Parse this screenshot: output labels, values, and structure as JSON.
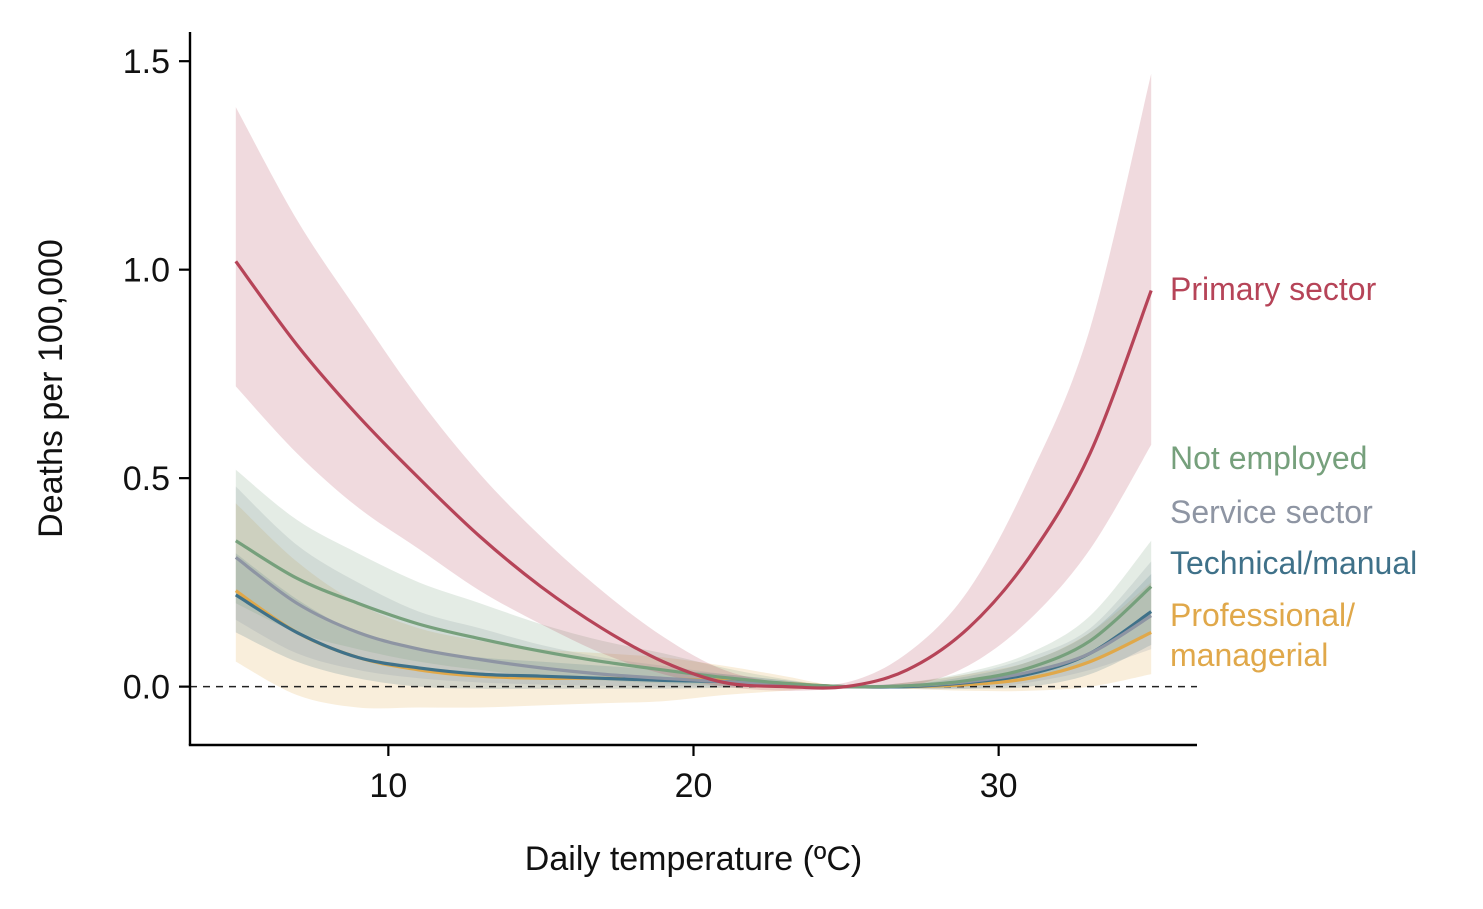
{
  "chart_data": {
    "type": "line",
    "title": "",
    "xlabel": "Daily temperature (ºC)",
    "ylabel": "Deaths per 100,000",
    "xlim": [
      3.5,
      36.5
    ],
    "ylim": [
      -0.14,
      1.57
    ],
    "x_ticks": [
      10,
      20,
      30
    ],
    "x_tick_labels": [
      "10",
      "20",
      "30"
    ],
    "y_ticks": [
      0.0,
      0.5,
      1.0,
      1.5
    ],
    "y_tick_labels": [
      "0.0",
      "0.5",
      "1.0",
      "1.5"
    ],
    "reference_line": {
      "y": 0,
      "style": "dashed"
    },
    "x": [
      5,
      7,
      9,
      11,
      13,
      15,
      17,
      19,
      21,
      23,
      25,
      27,
      29,
      31,
      33,
      35
    ],
    "series": [
      {
        "name": "Professional/ managerial",
        "label_lines": [
          "Professional/",
          "managerial"
        ],
        "color": "#E0A84A",
        "values": [
          0.23,
          0.13,
          0.07,
          0.04,
          0.025,
          0.02,
          0.02,
          0.018,
          0.015,
          0.008,
          0.0,
          0.0,
          0.005,
          0.02,
          0.06,
          0.13
        ],
        "lower": [
          0.06,
          -0.02,
          -0.05,
          -0.05,
          -0.05,
          -0.045,
          -0.04,
          -0.035,
          -0.02,
          -0.01,
          0.0,
          -0.005,
          -0.01,
          -0.01,
          0.0,
          0.03
        ],
        "upper": [
          0.44,
          0.3,
          0.2,
          0.14,
          0.11,
          0.09,
          0.08,
          0.07,
          0.05,
          0.025,
          0.0,
          0.01,
          0.03,
          0.06,
          0.13,
          0.25
        ]
      },
      {
        "name": "Technical/manual",
        "label_lines": [
          "Technical/manual"
        ],
        "color": "#3F7189",
        "values": [
          0.22,
          0.13,
          0.07,
          0.045,
          0.03,
          0.025,
          0.02,
          0.015,
          0.012,
          0.006,
          0.0,
          0.0,
          0.01,
          0.03,
          0.08,
          0.18
        ],
        "lower": [
          0.13,
          0.06,
          0.02,
          0.0,
          -0.005,
          -0.005,
          -0.005,
          -0.005,
          -0.003,
          0.0,
          0.0,
          -0.003,
          -0.005,
          0.0,
          0.03,
          0.1
        ],
        "upper": [
          0.32,
          0.21,
          0.13,
          0.09,
          0.07,
          0.06,
          0.05,
          0.04,
          0.03,
          0.015,
          0.0,
          0.005,
          0.025,
          0.06,
          0.13,
          0.27
        ]
      },
      {
        "name": "Service sector",
        "label_lines": [
          "Service sector"
        ],
        "color": "#8E95A3",
        "values": [
          0.31,
          0.2,
          0.13,
          0.09,
          0.065,
          0.045,
          0.03,
          0.02,
          0.012,
          0.005,
          0.0,
          0.002,
          0.012,
          0.035,
          0.08,
          0.17
        ],
        "lower": [
          0.16,
          0.08,
          0.04,
          0.02,
          0.01,
          0.005,
          0.002,
          0.0,
          0.0,
          0.0,
          0.0,
          -0.005,
          -0.005,
          0.01,
          0.04,
          0.09
        ],
        "upper": [
          0.48,
          0.34,
          0.25,
          0.18,
          0.14,
          0.1,
          0.07,
          0.05,
          0.03,
          0.015,
          0.0,
          0.01,
          0.03,
          0.07,
          0.14,
          0.3
        ]
      },
      {
        "name": "Not employed",
        "label_lines": [
          "Not employed"
        ],
        "color": "#76A07C",
        "values": [
          0.35,
          0.26,
          0.2,
          0.15,
          0.115,
          0.085,
          0.06,
          0.04,
          0.022,
          0.008,
          0.0,
          0.002,
          0.015,
          0.045,
          0.11,
          0.24
        ],
        "lower": [
          0.2,
          0.13,
          0.09,
          0.06,
          0.04,
          0.025,
          0.015,
          0.008,
          0.003,
          0.0,
          0.0,
          -0.005,
          0.0,
          0.02,
          0.06,
          0.13
        ],
        "upper": [
          0.52,
          0.4,
          0.32,
          0.25,
          0.2,
          0.15,
          0.11,
          0.08,
          0.045,
          0.018,
          0.0,
          0.01,
          0.035,
          0.08,
          0.17,
          0.35
        ]
      },
      {
        "name": "Primary sector",
        "label_lines": [
          "Primary sector"
        ],
        "color": "#B64458",
        "values": [
          1.02,
          0.82,
          0.65,
          0.5,
          0.36,
          0.24,
          0.14,
          0.06,
          0.01,
          0.0,
          0.0,
          0.04,
          0.14,
          0.31,
          0.56,
          0.95
        ],
        "lower": [
          0.72,
          0.56,
          0.43,
          0.33,
          0.23,
          0.15,
          0.08,
          0.03,
          0.0,
          -0.01,
          -0.005,
          0.0,
          0.05,
          0.16,
          0.33,
          0.58
        ],
        "upper": [
          1.39,
          1.12,
          0.9,
          0.69,
          0.51,
          0.36,
          0.23,
          0.12,
          0.04,
          0.01,
          0.01,
          0.08,
          0.23,
          0.5,
          0.86,
          1.47
        ]
      }
    ]
  }
}
